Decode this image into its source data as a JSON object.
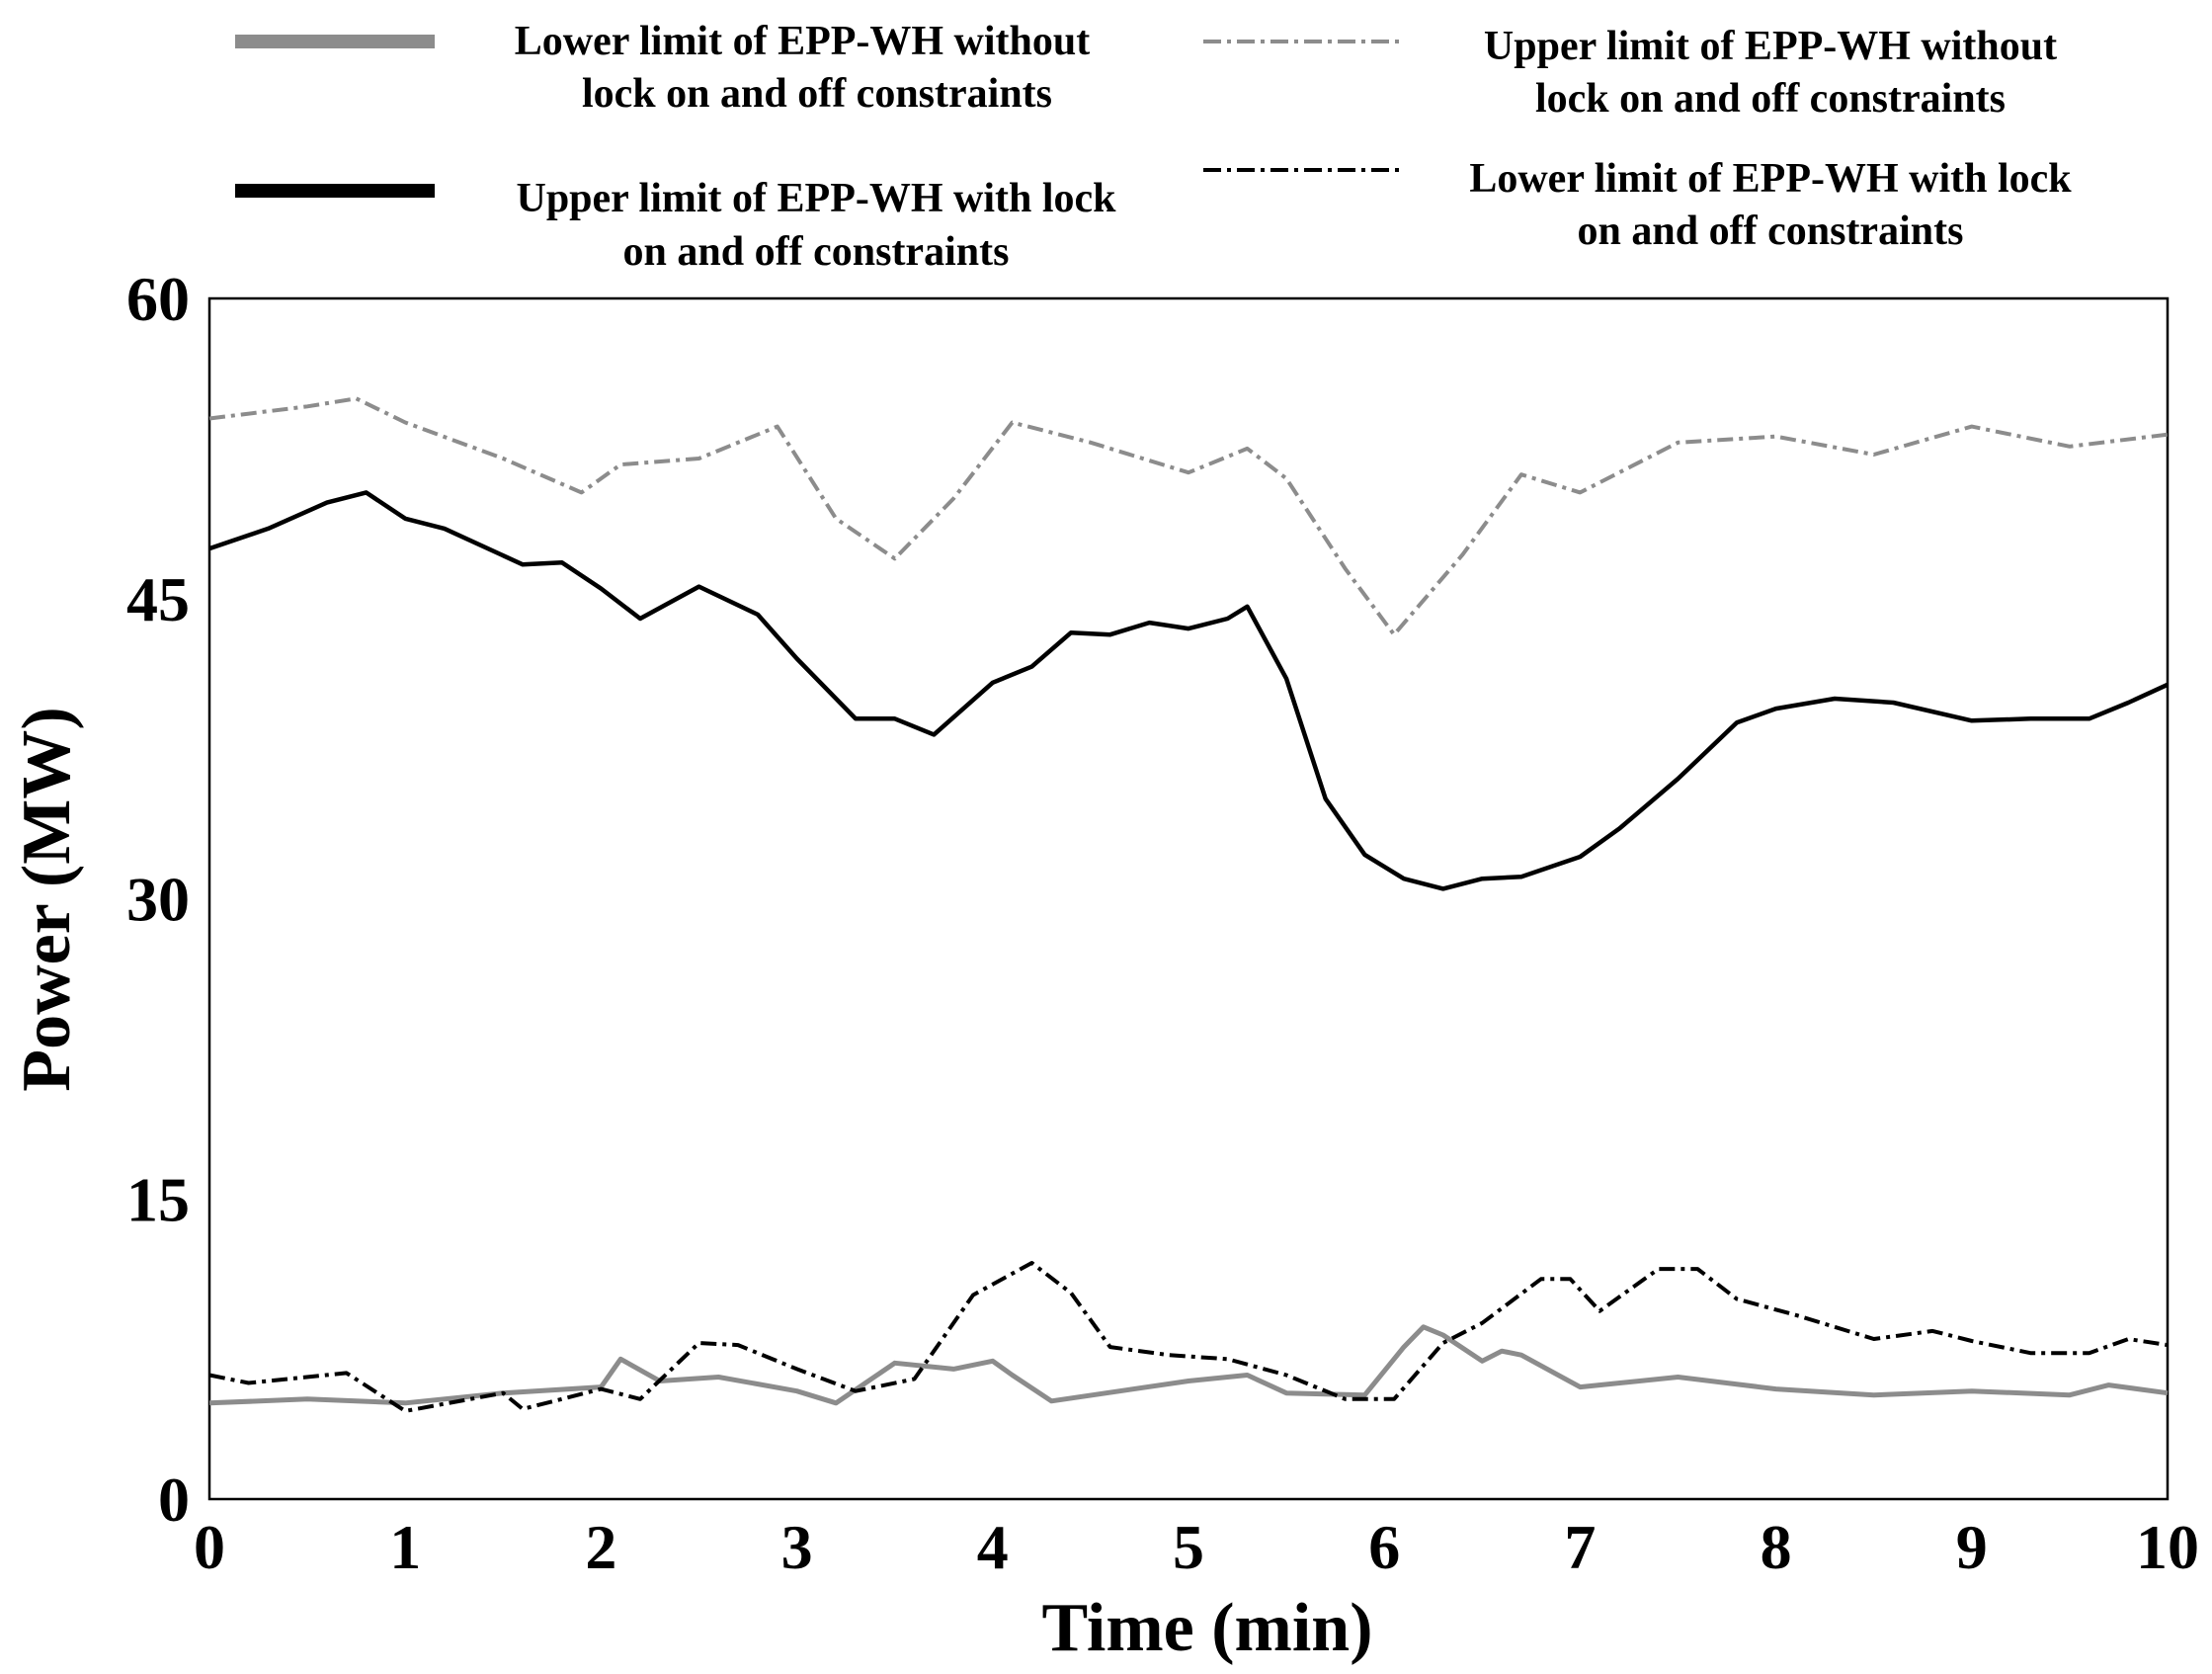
{
  "chart_data": {
    "type": "line",
    "title": "",
    "xlabel": "Time (min)",
    "ylabel": "Power (MW)",
    "xlim": [
      0,
      10
    ],
    "ylim": [
      0,
      60
    ],
    "xticks": [
      "0",
      "1",
      "2",
      "3",
      "4",
      "5",
      "6",
      "7",
      "8",
      "9",
      "10"
    ],
    "yticks": [
      "0",
      "15",
      "30",
      "45",
      "60"
    ],
    "grid": false,
    "legend_position": "top",
    "series": [
      {
        "name": "Lower limit of  EPP-WH without lock on and off constraints",
        "legend_lines": [
          "Lower limit of  EPP-WH without",
          "lock on and off constraints"
        ],
        "color": "#8c8c8c",
        "style": "solid",
        "x": [
          0,
          0.5,
          1,
          1.5,
          2,
          2.1,
          2.3,
          2.6,
          3,
          3.2,
          3.5,
          3.8,
          4,
          4.1,
          4.3,
          5,
          5.3,
          5.5,
          5.9,
          6.1,
          6.2,
          6.3,
          6.5,
          6.6,
          6.7,
          7,
          7.5,
          8,
          8.5,
          9,
          9.5,
          9.7,
          10
        ],
        "y": [
          4.8,
          5.0,
          4.8,
          5.3,
          5.6,
          7.0,
          5.9,
          6.1,
          5.4,
          4.8,
          6.8,
          6.5,
          6.9,
          6.2,
          4.9,
          5.9,
          6.2,
          5.3,
          5.2,
          7.6,
          8.6,
          8.2,
          6.9,
          7.4,
          7.2,
          5.6,
          6.1,
          5.5,
          5.2,
          5.4,
          5.2,
          5.7,
          5.3
        ]
      },
      {
        "name": "Upper  limit of  EPP-WH without lock on and off constraints",
        "legend_lines": [
          "Upper  limit of  EPP-WH without",
          "lock on and off constraints"
        ],
        "color": "#8c8c8c",
        "style": "dashdot",
        "x": [
          0,
          0.5,
          0.75,
          1,
          1.5,
          1.9,
          2.1,
          2.5,
          2.9,
          3.2,
          3.5,
          3.8,
          4.1,
          4.5,
          5,
          5.3,
          5.5,
          5.8,
          6.05,
          6.4,
          6.7,
          7,
          7.5,
          8,
          8.5,
          9,
          9.5,
          10
        ],
        "y": [
          54.0,
          54.6,
          55.0,
          53.8,
          52.0,
          50.3,
          51.7,
          52.0,
          53.6,
          49.0,
          47.0,
          50.0,
          53.8,
          52.8,
          51.3,
          52.5,
          51.0,
          46.5,
          43.2,
          47.2,
          51.2,
          50.3,
          52.8,
          53.1,
          52.2,
          53.6,
          52.6,
          53.2
        ]
      },
      {
        "name": "Upper limit of  EPP-WH with lock on and off constraints",
        "legend_lines": [
          "Upper limit of  EPP-WH with lock",
          "on and off constraints"
        ],
        "color": "#000000",
        "style": "solid",
        "x": [
          0,
          0.3,
          0.6,
          0.8,
          1,
          1.2,
          1.6,
          1.8,
          2,
          2.2,
          2.5,
          2.8,
          3,
          3.3,
          3.5,
          3.7,
          4,
          4.2,
          4.4,
          4.6,
          4.8,
          5,
          5.2,
          5.3,
          5.5,
          5.7,
          5.9,
          6.1,
          6.3,
          6.5,
          6.7,
          7,
          7.2,
          7.5,
          7.8,
          8,
          8.3,
          8.6,
          9,
          9.3,
          9.6,
          9.8,
          10
        ],
        "y": [
          47.5,
          48.5,
          49.8,
          50.3,
          49.0,
          48.5,
          46.7,
          46.8,
          45.5,
          44.0,
          45.6,
          44.2,
          42.0,
          39.0,
          39.0,
          38.2,
          40.8,
          41.6,
          43.3,
          43.2,
          43.8,
          43.5,
          44.0,
          44.6,
          41.0,
          35.0,
          32.2,
          31.0,
          30.5,
          31.0,
          31.1,
          32.1,
          33.5,
          36.0,
          38.8,
          39.5,
          40.0,
          39.8,
          38.9,
          39.0,
          39.0,
          39.8,
          40.7
        ]
      },
      {
        "name": "Lower limit of  EPP-WH with lock on and off constraints",
        "legend_lines": [
          "Lower limit of  EPP-WH with lock",
          "on and off constraints"
        ],
        "color": "#000000",
        "style": "dashdot",
        "x": [
          0,
          0.2,
          0.7,
          1,
          1.5,
          1.6,
          2,
          2.2,
          2.5,
          2.7,
          3,
          3.3,
          3.6,
          3.9,
          4.2,
          4.4,
          4.6,
          4.9,
          5.2,
          5.5,
          5.8,
          6.05,
          6.3,
          6.5,
          6.8,
          6.95,
          7.1,
          7.4,
          7.6,
          7.8,
          8.1,
          8.3,
          8.5,
          8.8,
          9.0,
          9.3,
          9.6,
          9.8,
          10
        ],
        "y": [
          6.2,
          5.8,
          6.3,
          4.4,
          5.3,
          4.5,
          5.5,
          5.0,
          7.8,
          7.7,
          6.5,
          5.4,
          6.0,
          10.2,
          11.8,
          10.3,
          7.6,
          7.2,
          7.0,
          6.2,
          5.0,
          5.0,
          7.8,
          8.8,
          11.0,
          11.0,
          9.4,
          11.5,
          11.5,
          10.0,
          9.2,
          8.6,
          8.0,
          8.4,
          7.9,
          7.3,
          7.3,
          8.0,
          7.7
        ]
      }
    ]
  }
}
